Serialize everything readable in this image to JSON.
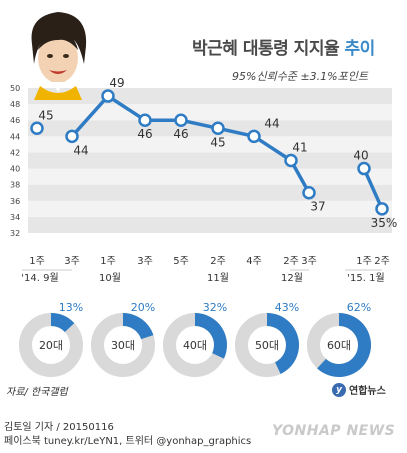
{
  "header": {
    "title_main": "박근혜 대통령 지지율",
    "title_accent": "추이",
    "subtitle": "95%신뢰수준 ±3.1%포인트"
  },
  "colors": {
    "accent": "#3a8ac9",
    "line": "#2f7cc4",
    "band_dark": "#e6e6e6",
    "band_light": "#f3f3f3",
    "donut_bg": "#d9d9d9",
    "text": "#333333"
  },
  "chart_data": [
    {
      "type": "line",
      "title": "박근혜 대통령 지지율 추이",
      "subtitle": "95%신뢰수준 ±3.1%포인트",
      "ylim": [
        32,
        50
      ],
      "yticks": [
        32,
        34,
        36,
        38,
        40,
        42,
        44,
        46,
        48,
        50
      ],
      "grid": true,
      "x": [
        "1주",
        "3주",
        "1주",
        "3주",
        "5주",
        "2주",
        "4주",
        "2주",
        "3주",
        "1주",
        "2주"
      ],
      "month_labels": [
        "'14. 9월",
        "10월",
        "11월",
        "12월",
        "'15. 1월"
      ],
      "segments": [
        {
          "values": [
            45
          ]
        },
        {
          "values": [
            44,
            49,
            46,
            46,
            45,
            44,
            41,
            37
          ]
        },
        {
          "values": [
            40,
            35
          ]
        }
      ],
      "value_labels": [
        "45",
        "44",
        "49",
        "46",
        "46",
        "45",
        "44",
        "41",
        "37",
        "40",
        "35%"
      ]
    },
    {
      "type": "pie",
      "title": "",
      "series": [
        {
          "name": "20대",
          "value": 13,
          "label": "13%"
        },
        {
          "name": "30대",
          "value": 20,
          "label": "20%"
        },
        {
          "name": "40대",
          "value": 32,
          "label": "32%"
        },
        {
          "name": "50대",
          "value": 43,
          "label": "43%"
        },
        {
          "name": "60대",
          "value": 62,
          "label": "62%"
        }
      ]
    }
  ],
  "source": "자료/ 한국갤럽",
  "logo_text": "연합뉴스",
  "footer": {
    "line1": "김토일 기자 / 20150116",
    "line2": "페이스북 tuney.kr/LeYN1, 트위터 @yonhap_graphics"
  },
  "watermark": "YONHAP NEWS"
}
